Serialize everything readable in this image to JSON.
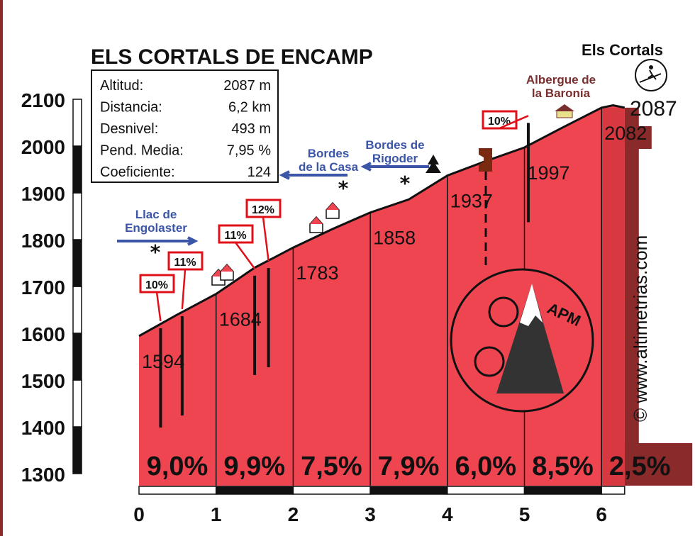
{
  "chart_data": {
    "type": "area",
    "title": "ELS CORTALS DE ENCAMP",
    "xlabel": "",
    "ylabel": "",
    "xlim": [
      0,
      6.3
    ],
    "ylim": [
      1300,
      2100
    ],
    "x_ticks": [
      "0",
      "1",
      "2",
      "3",
      "4",
      "5",
      "6"
    ],
    "y_ticks": [
      "1300",
      "1400",
      "1500",
      "1600",
      "1700",
      "1800",
      "1900",
      "2000",
      "2100"
    ],
    "profile": [
      {
        "x": 0,
        "y": 1594
      },
      {
        "x": 0.5,
        "y": 1640
      },
      {
        "x": 1,
        "y": 1684
      },
      {
        "x": 1.5,
        "y": 1740
      },
      {
        "x": 2,
        "y": 1783
      },
      {
        "x": 2.5,
        "y": 1822
      },
      {
        "x": 3,
        "y": 1858
      },
      {
        "x": 3.5,
        "y": 1886
      },
      {
        "x": 4,
        "y": 1937
      },
      {
        "x": 4.5,
        "y": 1968
      },
      {
        "x": 5,
        "y": 1997
      },
      {
        "x": 5.5,
        "y": 2040
      },
      {
        "x": 6,
        "y": 2082
      },
      {
        "x": 6.15,
        "y": 2087
      },
      {
        "x": 6.3,
        "y": 2082
      }
    ],
    "km_altitudes": [
      {
        "km": 0,
        "label": "1594"
      },
      {
        "km": 1,
        "label": "1684"
      },
      {
        "km": 2,
        "label": "1783"
      },
      {
        "km": 3,
        "label": "1858"
      },
      {
        "km": 4,
        "label": "1937"
      },
      {
        "km": 5,
        "label": "1997"
      },
      {
        "km": 6,
        "label": "2082"
      }
    ],
    "segment_grades": [
      "9,0%",
      "9,9%",
      "7,5%",
      "7,9%",
      "6,0%",
      "8,5%",
      "2,5%"
    ],
    "summit_label": "2087",
    "summit_name": "Els Cortals",
    "max_grades": [
      {
        "km": 0.28,
        "label": "10%"
      },
      {
        "km": 0.56,
        "label": "11%"
      },
      {
        "km": 1.5,
        "label": "11%"
      },
      {
        "km": 1.68,
        "label": "12%"
      },
      {
        "km": 5.05,
        "label": "10%"
      }
    ],
    "places": [
      {
        "lines": [
          "Llac de",
          "Engolaster"
        ],
        "color": "#3b55a8",
        "arrow": "right"
      },
      {
        "lines": [
          "Bordes",
          "de la Casa"
        ],
        "color": "#3b55a8",
        "arrow": "left"
      },
      {
        "lines": [
          "Bordes de",
          "Rigoder"
        ],
        "color": "#3b55a8",
        "arrow": "left"
      },
      {
        "lines": [
          "Albergue de",
          "la Baronía"
        ],
        "color": "#7a2e2e",
        "arrow": "none"
      }
    ],
    "colors": {
      "fill": "#ef4550",
      "dark": "#8b2a2a",
      "line": "#111111",
      "place": "#3b55a8"
    }
  },
  "info_box": {
    "rows": [
      {
        "label": "Altitud:",
        "value": "2087 m"
      },
      {
        "label": "Distancia:",
        "value": "6,2 km"
      },
      {
        "label": "Desnivel:",
        "value": "493 m"
      },
      {
        "label": "Pend. Media:",
        "value": "7,95 %"
      },
      {
        "label": "Coeficiente:",
        "value": "124"
      }
    ]
  },
  "watermark": "© www.altimetrias.com",
  "logo_text": "APM"
}
